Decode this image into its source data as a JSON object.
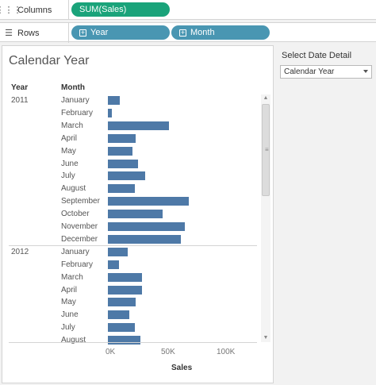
{
  "shelves": {
    "columns": {
      "label": "Columns",
      "icon": "columns-icon",
      "pills": [
        {
          "label": "SUM(Sales)",
          "color": "#1aa37a"
        }
      ]
    },
    "rows": {
      "label": "Rows",
      "icon": "rows-icon",
      "pills": [
        {
          "label": "Year",
          "color": "#4996b2"
        },
        {
          "label": "Month",
          "color": "#4996b2"
        }
      ]
    }
  },
  "view": {
    "title": "Calendar Year",
    "year_header": "Year",
    "month_header": "Month"
  },
  "filter": {
    "title": "Select Date Detail",
    "selected": "Calendar Year"
  },
  "chart_data": {
    "type": "bar",
    "orientation": "horizontal",
    "xlabel": "Sales",
    "xlim": [
      0,
      130000
    ],
    "x_ticks": [
      "0K",
      "50K",
      "100K"
    ],
    "bar_color": "#4e79a7",
    "groups": [
      {
        "year": "2011",
        "rows": [
          {
            "month": "January",
            "value": 11000
          },
          {
            "month": "February",
            "value": 3500
          },
          {
            "month": "March",
            "value": 55000
          },
          {
            "month": "April",
            "value": 25000
          },
          {
            "month": "May",
            "value": 22000
          },
          {
            "month": "June",
            "value": 27000
          },
          {
            "month": "July",
            "value": 33500
          },
          {
            "month": "August",
            "value": 24000
          },
          {
            "month": "September",
            "value": 73000
          },
          {
            "month": "October",
            "value": 49500
          },
          {
            "month": "November",
            "value": 69500
          },
          {
            "month": "December",
            "value": 65500
          }
        ]
      },
      {
        "year": "2012",
        "rows": [
          {
            "month": "January",
            "value": 18000
          },
          {
            "month": "February",
            "value": 10000
          },
          {
            "month": "March",
            "value": 31000
          },
          {
            "month": "April",
            "value": 31000
          },
          {
            "month": "May",
            "value": 25000
          },
          {
            "month": "June",
            "value": 19500
          },
          {
            "month": "July",
            "value": 24000
          },
          {
            "month": "August",
            "value": 29000
          }
        ]
      }
    ]
  }
}
